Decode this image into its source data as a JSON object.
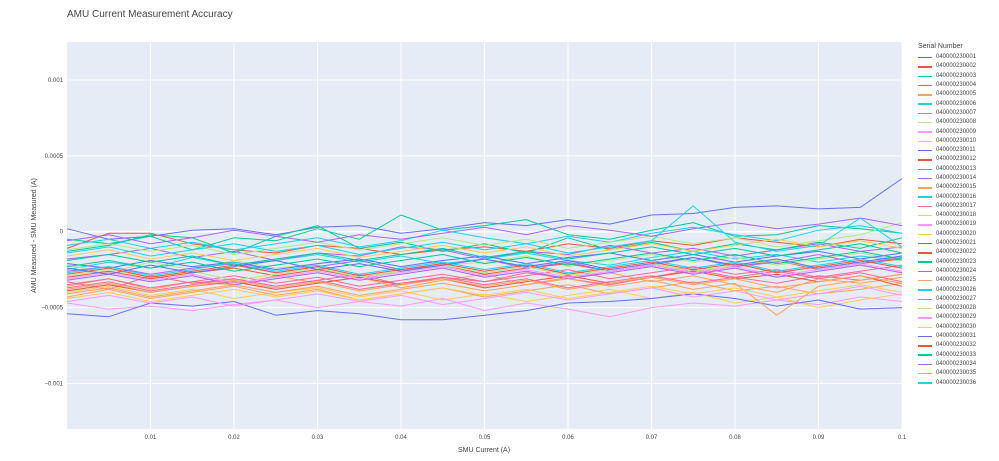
{
  "chart_data": {
    "type": "line",
    "title": "AMU Current Measurement Accuracy",
    "xlabel": "SMU Current (A)",
    "ylabel": "AMU Measured - SMU Measured (A)",
    "xlim": [
      0,
      0.1
    ],
    "ylim": [
      -0.0013,
      0.00125
    ],
    "x_ticks": [
      0.01,
      0.02,
      0.03,
      0.04,
      0.05,
      0.06,
      0.07,
      0.08,
      0.09,
      0.1
    ],
    "x_tick_labels": [
      "0.01",
      "0.02",
      "0.03",
      "0.04",
      "0.05",
      "0.06",
      "0.07",
      "0.08",
      "0.09",
      "0.1"
    ],
    "y_ticks": [
      0.001,
      0.0005,
      0,
      -0.0005,
      -0.001
    ],
    "y_tick_labels": [
      "0.001",
      "0.0005",
      "0",
      "−0.0005",
      "−0.001"
    ],
    "grid": true,
    "legend_title": "Serial Number",
    "legend_position": "right",
    "x": [
      0,
      0.005,
      0.01,
      0.015,
      0.02,
      0.025,
      0.03,
      0.035,
      0.04,
      0.045,
      0.05,
      0.055,
      0.06,
      0.065,
      0.07,
      0.075,
      0.08,
      0.085,
      0.09,
      0.095,
      0.1
    ],
    "series": [
      {
        "name": "040000230001",
        "color": "#636efa",
        "values": [
          2e-05,
          -5e-05,
          -3e-05,
          1e-05,
          2e-05,
          -2e-05,
          3e-05,
          4e-05,
          -1e-05,
          2e-05,
          6e-05,
          4e-05,
          8e-05,
          5e-05,
          0.00011,
          0.00012,
          0.00016,
          0.00017,
          0.00015,
          0.00016,
          0.00035
        ]
      },
      {
        "name": "040000230002",
        "color": "#ef553b",
        "values": [
          -0.00011,
          -1e-05,
          -1e-05,
          -8e-05,
          -0.00012,
          -0.00014,
          -9e-05,
          -0.00011,
          -0.00015,
          -0.00012,
          -0.0001,
          -0.00013,
          -8e-05,
          -0.00011,
          -6e-05,
          -9e-05,
          -4e-05,
          -7e-05,
          -0.0001,
          -5e-05,
          -8e-05
        ]
      },
      {
        "name": "040000230003",
        "color": "#00cc96",
        "values": [
          -5e-05,
          -8e-05,
          -3e-05,
          -0.00012,
          -4e-05,
          -6e-05,
          2e-05,
          -5e-05,
          0.00011,
          1e-05,
          4e-05,
          8e-05,
          -2e-05,
          -5e-05,
          1e-05,
          6e-05,
          -3e-05,
          -2e-05,
          4e-05,
          2e-05,
          -1e-05
        ]
      },
      {
        "name": "040000230004",
        "color": "#ab63fa",
        "values": [
          -0.00018,
          -0.00015,
          -0.00011,
          -0.00017,
          -0.00013,
          -0.00019,
          -0.00014,
          -0.00016,
          -0.0001,
          -0.00012,
          -0.00018,
          -0.00013,
          -0.00015,
          -9e-05,
          -0.00014,
          -0.00011,
          -0.00016,
          -0.00012,
          -8e-05,
          -0.00013,
          -0.0001
        ]
      },
      {
        "name": "040000230005",
        "color": "#ffa15a",
        "values": [
          -0.00036,
          -0.00031,
          -0.00038,
          -0.00033,
          -0.00035,
          -0.00029,
          -0.00034,
          -0.0003,
          -0.00037,
          -0.00032,
          -0.00028,
          -0.00035,
          -0.0003,
          -0.00027,
          -0.00033,
          -0.00029,
          -0.00035,
          -0.0004,
          -0.00031,
          -0.00034,
          -0.0003
        ]
      },
      {
        "name": "040000230006",
        "color": "#19d3f3",
        "values": [
          -0.00025,
          -0.0002,
          -0.00024,
          -0.00017,
          -0.00022,
          -0.00019,
          -0.00015,
          -0.0002,
          -0.00016,
          -0.00021,
          -0.00018,
          -0.00014,
          -0.00019,
          -0.00022,
          -0.00017,
          -0.00013,
          -0.00018,
          -0.00015,
          -0.0002,
          -0.00016,
          -0.00019
        ]
      },
      {
        "name": "040000230007",
        "color": "#ff6692",
        "values": [
          -0.00033,
          -0.00038,
          -0.00029,
          -0.00034,
          -0.00031,
          -0.00036,
          -0.00032,
          -0.00028,
          -0.00035,
          -0.0003,
          -0.00033,
          -0.00027,
          -0.00031,
          -0.00035,
          -0.0003,
          -0.00025,
          -0.0003,
          -0.00034,
          -0.00029,
          -0.00032,
          -0.00028
        ]
      },
      {
        "name": "040000230008",
        "color": "#b6e880",
        "values": [
          -0.00022,
          -0.00027,
          -0.0002,
          -0.00025,
          -0.00019,
          -0.00024,
          -0.00021,
          -0.00018,
          -0.00026,
          -0.00022,
          -0.0002,
          -0.00016,
          -0.00023,
          -0.00019,
          -0.00015,
          -0.0002,
          -0.00017,
          -0.00022,
          -0.00018,
          -0.00014,
          -0.00019
        ]
      },
      {
        "name": "040000230009",
        "color": "#ff97ff",
        "values": [
          -0.00047,
          -0.00051,
          -0.00049,
          -0.00052,
          -0.00048,
          -0.00045,
          -0.0005,
          -0.00046,
          -0.00049,
          -0.00044,
          -0.00052,
          -0.00047,
          -0.00051,
          -0.00056,
          -0.0005,
          -0.00047,
          -0.00049,
          -0.00045,
          -0.00048,
          -0.00043,
          -0.00046
        ]
      },
      {
        "name": "040000230010",
        "color": "#fecb52",
        "values": [
          -0.0004,
          -0.00036,
          -0.00042,
          -0.00038,
          -0.00044,
          -0.0004,
          -0.00037,
          -0.00043,
          -0.00039,
          -0.00045,
          -0.00041,
          -0.00046,
          -0.00042,
          -0.00038,
          -0.00044,
          -0.0004,
          -0.00047,
          -0.00043,
          -0.0005,
          -0.00045,
          -0.00041
        ]
      },
      {
        "name": "040000230011",
        "color": "#636efa",
        "values": [
          -0.00054,
          -0.00056,
          -0.00047,
          -0.00049,
          -0.00046,
          -0.00055,
          -0.00052,
          -0.00054,
          -0.00058,
          -0.00058,
          -0.00055,
          -0.00052,
          -0.00047,
          -0.00046,
          -0.00044,
          -0.00041,
          -0.00044,
          -0.00049,
          -0.00045,
          -0.00051,
          -0.0005
        ]
      },
      {
        "name": "040000230012",
        "color": "#ef553b",
        "values": [
          -0.0003,
          -0.00026,
          -0.00031,
          -0.00027,
          -0.00024,
          -0.00029,
          -0.00025,
          -0.0003,
          -0.00026,
          -0.00022,
          -0.00028,
          -0.00024,
          -0.00021,
          -0.00026,
          -0.00022,
          -0.00027,
          -0.00023,
          -0.00019,
          -0.00025,
          -0.00021,
          -0.00018
        ]
      },
      {
        "name": "040000230013",
        "color": "#00cc96",
        "values": [
          -0.00013,
          -9e-05,
          -2e-05,
          -4e-05,
          -0.00014,
          -3e-05,
          4e-05,
          -0.00011,
          -7e-05,
          -0.00013,
          -8e-05,
          -0.00014,
          -4e-05,
          -0.00012,
          -7e-05,
          -0.00013,
          -8e-05,
          -0.00012,
          -7e-05,
          -0.00011,
          -4e-05
        ]
      },
      {
        "name": "040000230014",
        "color": "#ab63fa",
        "values": [
          -0.00026,
          -0.00023,
          -0.00028,
          -0.00024,
          -0.00021,
          -0.00027,
          -0.00023,
          -0.00019,
          -0.00025,
          -0.00022,
          -0.00018,
          -0.00024,
          -0.0002,
          -0.00026,
          -0.00022,
          -0.00017,
          -0.00023,
          -0.0002,
          -0.00015,
          -0.00021,
          -0.00017
        ]
      },
      {
        "name": "040000230015",
        "color": "#ffa15a",
        "values": [
          -0.00043,
          -0.00038,
          -0.00044,
          -0.0004,
          -0.00036,
          -0.00042,
          -0.00038,
          -0.00045,
          -0.00041,
          -0.00037,
          -0.00043,
          -0.00039,
          -0.00035,
          -0.00041,
          -0.00037,
          -0.00033,
          -0.00039,
          -0.00036,
          -0.00041,
          -0.00038,
          -0.00034
        ]
      },
      {
        "name": "040000230016",
        "color": "#19d3f3",
        "values": [
          -9e-05,
          -5e-05,
          -0.00011,
          -7e-05,
          -0.00012,
          -8e-05,
          -4e-05,
          -0.0001,
          -6e-05,
          1e-05,
          -4e-05,
          -8e-05,
          -3e-05,
          -7e-05,
          -1e-05,
          3e-05,
          -2e-05,
          -6e-05,
          1e-05,
          4e-05,
          -1e-05
        ]
      },
      {
        "name": "040000230017",
        "color": "#ff6692",
        "values": [
          -0.00035,
          -0.00031,
          -0.00037,
          -0.00033,
          -0.00029,
          -0.00034,
          -0.0003,
          -0.00036,
          -0.00032,
          -0.00028,
          -0.00033,
          -0.00029,
          -0.00025,
          -0.00031,
          -0.00027,
          -0.00023,
          -0.00028,
          -0.00025,
          -0.0003,
          -0.00026,
          -0.00022
        ]
      },
      {
        "name": "040000230018",
        "color": "#b6e880",
        "values": [
          -0.00029,
          -0.00025,
          -0.0003,
          -0.00026,
          -0.00032,
          -0.00028,
          -0.00024,
          -0.0003,
          -0.00026,
          -0.00022,
          -0.00027,
          -0.00023,
          -0.00029,
          -0.00025,
          -0.00021,
          -0.00026,
          -0.00022,
          -0.00019,
          -0.00024,
          -0.0002,
          -0.00016
        ]
      },
      {
        "name": "040000230019",
        "color": "#ff97ff",
        "values": [
          -0.00046,
          -0.00042,
          -0.00047,
          -0.00043,
          -0.00049,
          -0.00045,
          -0.00041,
          -0.00046,
          -0.00042,
          -0.00048,
          -0.00044,
          -0.0004,
          -0.00045,
          -0.00041,
          -0.00037,
          -0.00043,
          -0.00039,
          -0.00045,
          -0.00041,
          -0.00036,
          -0.00042
        ]
      },
      {
        "name": "040000230020",
        "color": "#fecb52",
        "values": [
          -0.00016,
          -0.00012,
          -0.00018,
          -0.00014,
          -0.00019,
          -0.00015,
          -0.00011,
          -0.00017,
          -0.00013,
          -9e-05,
          -0.00014,
          -0.0001,
          -0.00016,
          -0.00012,
          -8e-05,
          -0.00013,
          -9e-05,
          -5e-05,
          -0.0001,
          -6e-05,
          -0.00011
        ]
      },
      {
        "name": "040000230021",
        "color": "#636efa",
        "values": [
          -0.00021,
          -0.00024,
          -0.00019,
          -0.00023,
          -0.0002,
          -0.00025,
          -0.00021,
          -0.00018,
          -0.00023,
          -0.00019,
          -0.00016,
          -0.00021,
          -0.00017,
          -0.00014,
          -0.00019,
          -0.00015,
          -0.0002,
          -0.00016,
          -0.00013,
          -0.00018,
          -0.00014
        ]
      },
      {
        "name": "040000230022",
        "color": "#ef553b",
        "values": [
          -0.00039,
          -0.00035,
          -0.0004,
          -0.00036,
          -0.00033,
          -0.00038,
          -0.00034,
          -0.0003,
          -0.00035,
          -0.00031,
          -0.00037,
          -0.00033,
          -0.00029,
          -0.00034,
          -0.0003,
          -0.00026,
          -0.00031,
          -0.00028,
          -0.00033,
          -0.00029,
          -0.00036
        ]
      },
      {
        "name": "040000230023",
        "color": "#00cc96",
        "values": [
          -0.00019,
          -0.00015,
          -0.0002,
          -0.00016,
          -0.00022,
          -0.00018,
          -0.00014,
          -0.00019,
          -0.00015,
          -0.00011,
          -0.00017,
          -0.00013,
          -0.00018,
          -0.00014,
          -0.0001,
          -0.00015,
          -0.00011,
          -0.00016,
          -0.00012,
          -8e-05,
          -0.00014
        ]
      },
      {
        "name": "040000230024",
        "color": "#ab63fa",
        "values": [
          -0.00032,
          -0.00028,
          -0.00033,
          -0.00029,
          -0.00035,
          -0.00031,
          -0.00027,
          -0.00032,
          -0.00028,
          -0.00024,
          -0.0003,
          -0.00026,
          -0.00031,
          -0.00027,
          -0.00023,
          -0.00028,
          -0.00024,
          -0.0003,
          -0.00026,
          -0.00022,
          -0.00027
        ]
      },
      {
        "name": "040000230025",
        "color": "#ffa15a",
        "values": [
          -0.00041,
          -0.00037,
          -0.00043,
          -0.00039,
          -0.00035,
          -0.0004,
          -0.00036,
          -0.00042,
          -0.00038,
          -0.00034,
          -0.00039,
          -0.00035,
          -0.00031,
          -0.00036,
          -0.00032,
          -0.00038,
          -0.00034,
          -0.00055,
          -0.00036,
          -0.00032,
          -0.00028
        ]
      },
      {
        "name": "040000230026",
        "color": "#19d3f3",
        "values": [
          -0.00027,
          -0.00023,
          -0.00029,
          -0.00025,
          -0.0002,
          -0.00026,
          -0.00022,
          -0.00028,
          -0.00024,
          -0.0002,
          -0.00025,
          -0.00021,
          -0.00027,
          -0.00023,
          -0.00019,
          -0.00024,
          -0.0002,
          -0.00026,
          -0.00022,
          -0.00018,
          -0.00023
        ]
      },
      {
        "name": "040000230027",
        "color": "#ff6692",
        "values": [
          -0.00037,
          -0.00033,
          -0.00039,
          -0.00035,
          -0.00031,
          -0.00036,
          -0.00032,
          -0.00038,
          -0.00034,
          -0.0003,
          -0.00035,
          -0.00031,
          -0.00037,
          -0.00033,
          -0.00029,
          -0.00034,
          -0.0003,
          -0.00026,
          -0.00031,
          -0.00027,
          -0.00033
        ]
      },
      {
        "name": "040000230028",
        "color": "#b6e880",
        "values": [
          -0.00012,
          -8e-05,
          -0.00013,
          -9e-05,
          -0.00015,
          -0.00011,
          -7e-05,
          -0.00012,
          -8e-05,
          -4e-05,
          -9e-05,
          -5e-05,
          -0.00011,
          -7e-05,
          -3e-05,
          -8e-05,
          -4e-05,
          -0.0001,
          -6e-05,
          -2e-05,
          6e-05
        ]
      },
      {
        "name": "040000230029",
        "color": "#ff97ff",
        "values": [
          -0.00031,
          -0.00027,
          -0.00032,
          -0.00028,
          -0.00034,
          -0.0003,
          -0.00026,
          -0.00031,
          -0.00027,
          -0.00023,
          -0.00029,
          -0.00025,
          -0.0003,
          -0.00026,
          -0.00022,
          -0.00027,
          -0.00023,
          -0.00029,
          -0.00025,
          -0.00021,
          -0.00026
        ]
      },
      {
        "name": "040000230030",
        "color": "#fecb52",
        "values": [
          -0.00044,
          -0.0004,
          -0.00046,
          -0.00042,
          -0.00038,
          -0.00043,
          -0.00039,
          -0.00045,
          -0.00041,
          -0.00037,
          -0.00042,
          -0.00038,
          -0.00044,
          -0.0004,
          -0.00036,
          -0.00041,
          -0.00037,
          -0.00043,
          -0.00039,
          -0.00035,
          -0.0004
        ]
      },
      {
        "name": "040000230031",
        "color": "#636efa",
        "values": [
          -0.00024,
          -0.00028,
          -0.00022,
          -0.00027,
          -0.00023,
          -0.00019,
          -0.00025,
          -0.00021,
          -0.00026,
          -0.00022,
          -0.00018,
          -0.00023,
          -0.00019,
          -0.00025,
          -0.00021,
          -0.00017,
          -0.00022,
          -0.00018,
          -0.00024,
          -0.0002,
          -0.00016
        ]
      },
      {
        "name": "040000230032",
        "color": "#ef553b",
        "values": [
          -0.00028,
          -0.00024,
          -0.0003,
          -0.00026,
          -0.00022,
          -0.00027,
          -0.00023,
          -0.00029,
          -0.00025,
          -0.00021,
          -0.00026,
          -0.00022,
          -0.00028,
          -0.00024,
          -0.0002,
          -0.00025,
          -0.00021,
          -0.00027,
          -0.00023,
          -0.00019,
          -0.00024
        ]
      },
      {
        "name": "040000230033",
        "color": "#00cc96",
        "values": [
          -0.00023,
          -0.00019,
          -0.00024,
          -0.0002,
          -0.00026,
          -0.00022,
          -0.00018,
          -0.00023,
          -0.00019,
          -0.00015,
          -0.00021,
          -0.00017,
          -0.00022,
          -0.00018,
          -0.00014,
          -0.00019,
          -0.00015,
          -0.00021,
          -0.00017,
          -0.00013,
          -0.00018
        ]
      },
      {
        "name": "040000230034",
        "color": "#ab63fa",
        "values": [
          -6e-05,
          -2e-05,
          -8e-05,
          -4e-05,
          1e-05,
          -3e-05,
          -7e-05,
          -2e-05,
          -5e-05,
          -1e-05,
          3e-05,
          -2e-05,
          4e-05,
          1e-05,
          -3e-05,
          2e-05,
          6e-05,
          2e-05,
          5e-05,
          9e-05,
          4e-05
        ]
      },
      {
        "name": "040000230035",
        "color": "#ffa15a",
        "values": [
          -0.00038,
          -0.00034,
          -0.0004,
          -0.00036,
          -0.00032,
          -0.00037,
          -0.00033,
          -0.00039,
          -0.00035,
          -0.00031,
          -0.00036,
          -0.00032,
          -0.00038,
          -0.00034,
          -0.0003,
          -0.00035,
          -0.00031,
          -0.00037,
          -0.00033,
          -0.00029,
          -0.00034
        ]
      },
      {
        "name": "040000230036",
        "color": "#19d3f3",
        "values": [
          -0.00014,
          -0.0001,
          -0.00016,
          -0.00012,
          -8e-05,
          -0.00013,
          -9e-05,
          -0.00015,
          -0.00011,
          -7e-05,
          -0.00012,
          -8e-05,
          -0.00014,
          -0.0001,
          -6e-05,
          0.00017,
          -7e-05,
          -0.00013,
          -9e-05,
          9e-05,
          -0.0001
        ]
      }
    ]
  }
}
